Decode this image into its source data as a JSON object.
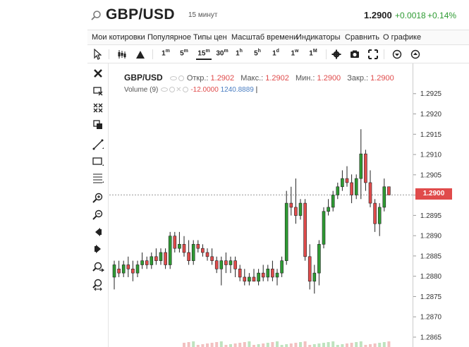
{
  "header": {
    "symbol": "GBP/USD",
    "interval": "15 минут",
    "last_price": "1.2900",
    "change_abs": "+0.0018",
    "change_pct": "+0.14%"
  },
  "menu": {
    "items": [
      "Мои котировки",
      "Популярное",
      "Типы цен",
      "Масштаб времени",
      "Индикаторы",
      "Сравнить",
      "О графике"
    ]
  },
  "toolbar": {
    "timeframes": [
      {
        "base": "1",
        "sup": "m"
      },
      {
        "base": "5",
        "sup": "m"
      },
      {
        "base": "15",
        "sup": "m"
      },
      {
        "base": "30",
        "sup": "m"
      },
      {
        "base": "1",
        "sup": "h"
      },
      {
        "base": "5",
        "sup": "h"
      },
      {
        "base": "1",
        "sup": "d"
      },
      {
        "base": "1",
        "sup": "w"
      },
      {
        "base": "1",
        "sup": "M"
      }
    ],
    "active_timeframe": "15m"
  },
  "legend": {
    "symbol": "GBP/USD",
    "open_label": "Откр.:",
    "open": "1.2902",
    "high_label": "Макс.:",
    "high": "1.2902",
    "low_label": "Мин.:",
    "low": "1.2900",
    "close_label": "Закр.:",
    "close": "1.2900",
    "volume_label": "Volume (9)",
    "volume_change": "-12.0000",
    "volume_value": "1240.8889"
  },
  "colors": {
    "up": "#2e9b33",
    "down": "#e04b4b",
    "wick": "#222222",
    "price_line": "#999999",
    "price_tag": "#e04b4b"
  },
  "chart_data": {
    "type": "candlestick",
    "title": "GBP/USD",
    "ylim": [
      1.2863,
      1.2932
    ],
    "y_ticks": [
      "1.2925",
      "1.2920",
      "1.2915",
      "1.2910",
      "1.2905",
      "1.2900",
      "1.2895",
      "1.2890",
      "1.2885",
      "1.2880",
      "1.2875",
      "1.2870",
      "1.2865"
    ],
    "current_price": "1.2900",
    "candles": [
      {
        "o": 1.288,
        "h": 1.2884,
        "l": 1.2877,
        "c": 1.2883
      },
      {
        "o": 1.2882,
        "h": 1.2884,
        "l": 1.288,
        "c": 1.2881
      },
      {
        "o": 1.2881,
        "h": 1.2884,
        "l": 1.288,
        "c": 1.2883
      },
      {
        "o": 1.2883,
        "h": 1.2885,
        "l": 1.288,
        "c": 1.2882
      },
      {
        "o": 1.2882,
        "h": 1.2884,
        "l": 1.2879,
        "c": 1.2881
      },
      {
        "o": 1.2881,
        "h": 1.2884,
        "l": 1.288,
        "c": 1.2883
      },
      {
        "o": 1.2883,
        "h": 1.2886,
        "l": 1.2882,
        "c": 1.2884
      },
      {
        "o": 1.2884,
        "h": 1.2885,
        "l": 1.2882,
        "c": 1.2883
      },
      {
        "o": 1.2883,
        "h": 1.2886,
        "l": 1.2882,
        "c": 1.2885
      },
      {
        "o": 1.2885,
        "h": 1.2887,
        "l": 1.2883,
        "c": 1.2884
      },
      {
        "o": 1.2884,
        "h": 1.2887,
        "l": 1.2883,
        "c": 1.2886
      },
      {
        "o": 1.2886,
        "h": 1.2887,
        "l": 1.2882,
        "c": 1.2883
      },
      {
        "o": 1.2883,
        "h": 1.2891,
        "l": 1.2882,
        "c": 1.289
      },
      {
        "o": 1.289,
        "h": 1.2891,
        "l": 1.2886,
        "c": 1.2887
      },
      {
        "o": 1.2887,
        "h": 1.2891,
        "l": 1.2886,
        "c": 1.2888
      },
      {
        "o": 1.2888,
        "h": 1.289,
        "l": 1.2885,
        "c": 1.2886
      },
      {
        "o": 1.2886,
        "h": 1.2889,
        "l": 1.2883,
        "c": 1.2884
      },
      {
        "o": 1.2884,
        "h": 1.2889,
        "l": 1.2883,
        "c": 1.2888
      },
      {
        "o": 1.2888,
        "h": 1.2889,
        "l": 1.2886,
        "c": 1.2887
      },
      {
        "o": 1.2887,
        "h": 1.2888,
        "l": 1.2885,
        "c": 1.2886
      },
      {
        "o": 1.2886,
        "h": 1.2887,
        "l": 1.2884,
        "c": 1.2885
      },
      {
        "o": 1.2885,
        "h": 1.2887,
        "l": 1.2883,
        "c": 1.2884
      },
      {
        "o": 1.2884,
        "h": 1.2885,
        "l": 1.2881,
        "c": 1.2882
      },
      {
        "o": 1.2882,
        "h": 1.2885,
        "l": 1.2878,
        "c": 1.2884
      },
      {
        "o": 1.2884,
        "h": 1.2886,
        "l": 1.2881,
        "c": 1.2883
      },
      {
        "o": 1.2883,
        "h": 1.2885,
        "l": 1.2881,
        "c": 1.2884
      },
      {
        "o": 1.2884,
        "h": 1.2885,
        "l": 1.288,
        "c": 1.2882
      },
      {
        "o": 1.2882,
        "h": 1.2883,
        "l": 1.2879,
        "c": 1.288
      },
      {
        "o": 1.288,
        "h": 1.2882,
        "l": 1.2878,
        "c": 1.2879
      },
      {
        "o": 1.2879,
        "h": 1.2881,
        "l": 1.2878,
        "c": 1.288
      },
      {
        "o": 1.288,
        "h": 1.2882,
        "l": 1.2879,
        "c": 1.2879
      },
      {
        "o": 1.2879,
        "h": 1.2882,
        "l": 1.2878,
        "c": 1.2881
      },
      {
        "o": 1.2881,
        "h": 1.2883,
        "l": 1.2879,
        "c": 1.288
      },
      {
        "o": 1.288,
        "h": 1.2883,
        "l": 1.2879,
        "c": 1.2882
      },
      {
        "o": 1.2882,
        "h": 1.2884,
        "l": 1.2879,
        "c": 1.288
      },
      {
        "o": 1.288,
        "h": 1.2882,
        "l": 1.2878,
        "c": 1.2881
      },
      {
        "o": 1.2881,
        "h": 1.2885,
        "l": 1.288,
        "c": 1.2884
      },
      {
        "o": 1.2884,
        "h": 1.2901,
        "l": 1.2883,
        "c": 1.2898
      },
      {
        "o": 1.2898,
        "h": 1.2902,
        "l": 1.2895,
        "c": 1.2897
      },
      {
        "o": 1.2897,
        "h": 1.2904,
        "l": 1.2893,
        "c": 1.2895
      },
      {
        "o": 1.2895,
        "h": 1.2899,
        "l": 1.2894,
        "c": 1.2898
      },
      {
        "o": 1.2898,
        "h": 1.2899,
        "l": 1.2884,
        "c": 1.2885
      },
      {
        "o": 1.2885,
        "h": 1.2888,
        "l": 1.2877,
        "c": 1.2879
      },
      {
        "o": 1.2879,
        "h": 1.2883,
        "l": 1.2876,
        "c": 1.2881
      },
      {
        "o": 1.2881,
        "h": 1.2889,
        "l": 1.2878,
        "c": 1.2888
      },
      {
        "o": 1.2888,
        "h": 1.2897,
        "l": 1.2887,
        "c": 1.2896
      },
      {
        "o": 1.2896,
        "h": 1.2899,
        "l": 1.2895,
        "c": 1.2897
      },
      {
        "o": 1.2897,
        "h": 1.2901,
        "l": 1.2896,
        "c": 1.29
      },
      {
        "o": 1.29,
        "h": 1.2903,
        "l": 1.2899,
        "c": 1.2902
      },
      {
        "o": 1.2902,
        "h": 1.2906,
        "l": 1.2901,
        "c": 1.2904
      },
      {
        "o": 1.2904,
        "h": 1.2907,
        "l": 1.2902,
        "c": 1.2903
      },
      {
        "o": 1.2903,
        "h": 1.2905,
        "l": 1.2898,
        "c": 1.29
      },
      {
        "o": 1.29,
        "h": 1.2905,
        "l": 1.2899,
        "c": 1.2904
      },
      {
        "o": 1.2904,
        "h": 1.2916,
        "l": 1.2899,
        "c": 1.291
      },
      {
        "o": 1.291,
        "h": 1.2911,
        "l": 1.2901,
        "c": 1.2903
      },
      {
        "o": 1.2903,
        "h": 1.2906,
        "l": 1.2897,
        "c": 1.2898
      },
      {
        "o": 1.2898,
        "h": 1.2899,
        "l": 1.2891,
        "c": 1.2893
      },
      {
        "o": 1.2893,
        "h": 1.2898,
        "l": 1.289,
        "c": 1.2897
      },
      {
        "o": 1.2897,
        "h": 1.2904,
        "l": 1.2896,
        "c": 1.2902
      },
      {
        "o": 1.2902,
        "h": 1.2902,
        "l": 1.29,
        "c": 1.29
      }
    ]
  }
}
